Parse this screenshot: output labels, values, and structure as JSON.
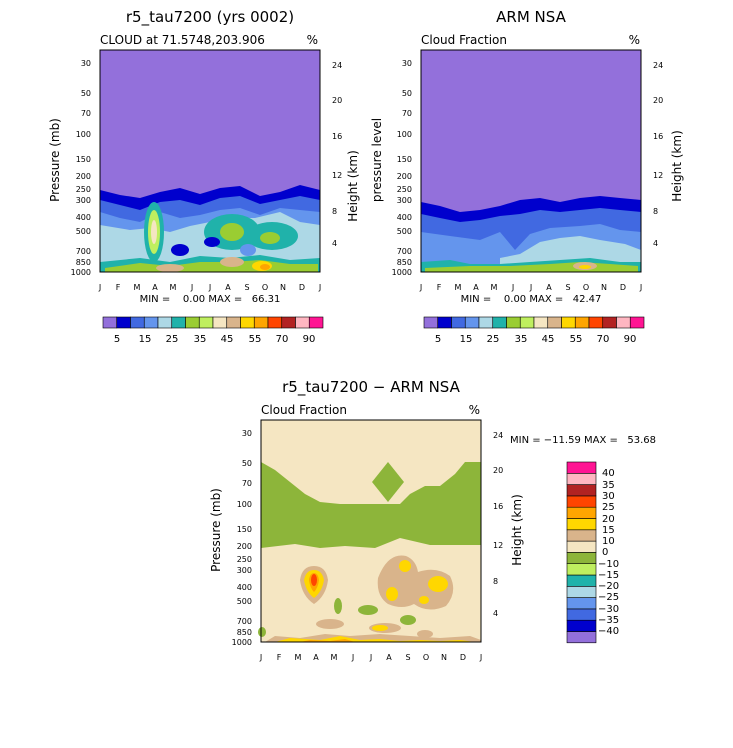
{
  "colors": {
    "cloud_scale": [
      "#9370db",
      "#0000cd",
      "#4169e1",
      "#6495ed",
      "#add8e6",
      "#20b2aa",
      "#9acd32",
      "#bfef5f",
      "#f5e6c2",
      "#d9b48b",
      "#ffd700",
      "#ffa500",
      "#ff4500",
      "#b22222",
      "#ffb6c1",
      "#ff1493"
    ],
    "diff_scale": [
      "#9370db",
      "#0000cd",
      "#4169e1",
      "#6495ed",
      "#add8e6",
      "#20b2aa",
      "#bfef5f",
      "#8db53a",
      "#f5e6c2",
      "#d9b48b",
      "#ffd700",
      "#ffa500",
      "#ff4500",
      "#b22222",
      "#ffb6c1",
      "#ff1493"
    ]
  },
  "chart_data": [
    {
      "type": "heatmap",
      "title": "r5_tau7200 (yrs 0002)",
      "subtitle": "CLOUD at 71.5748,203.906",
      "unit": "%",
      "ylabel": "Pressure (mb)",
      "ylabel_right": "Height (km)",
      "x_ticks": [
        "J",
        "F",
        "M",
        "A",
        "M",
        "J",
        "J",
        "A",
        "S",
        "O",
        "N",
        "D",
        "J"
      ],
      "y_ticks": [
        "30",
        "50",
        "70",
        "100",
        "150",
        "200",
        "250",
        "300",
        "400",
        "500",
        "700",
        "850",
        "1000"
      ],
      "y_right_ticks": [
        "24",
        "20",
        "16",
        "12",
        "8",
        "4"
      ],
      "stats": "MIN =    0.00 MAX =   66.31",
      "legend_labels": [
        "5",
        "15",
        "25",
        "35",
        "45",
        "55",
        "70",
        "90"
      ],
      "log_y": true
    },
    {
      "type": "heatmap",
      "title": "ARM NSA",
      "subtitle": "Cloud Fraction",
      "unit": "%",
      "ylabel": "pressure level",
      "ylabel_right": "Height (km)",
      "x_ticks": [
        "J",
        "F",
        "M",
        "A",
        "M",
        "J",
        "J",
        "A",
        "S",
        "O",
        "N",
        "D",
        "J"
      ],
      "y_ticks": [
        "30",
        "50",
        "70",
        "100",
        "150",
        "200",
        "250",
        "300",
        "400",
        "500",
        "700",
        "850",
        "1000"
      ],
      "y_right_ticks": [
        "24",
        "20",
        "16",
        "12",
        "8",
        "4"
      ],
      "stats": "MIN =    0.00 MAX =   42.47",
      "legend_labels": [
        "5",
        "15",
        "25",
        "35",
        "45",
        "55",
        "70",
        "90"
      ],
      "log_y": true
    },
    {
      "type": "heatmap",
      "title": "r5_tau7200 − ARM NSA",
      "subtitle": "Cloud Fraction",
      "unit": "%",
      "ylabel": "Pressure (mb)",
      "ylabel_right": "Height (km)",
      "x_ticks": [
        "J",
        "F",
        "M",
        "A",
        "M",
        "J",
        "J",
        "A",
        "S",
        "O",
        "N",
        "D",
        "J"
      ],
      "y_ticks": [
        "30",
        "50",
        "70",
        "100",
        "150",
        "200",
        "250",
        "300",
        "400",
        "500",
        "700",
        "850",
        "1000"
      ],
      "y_right_ticks": [
        "24",
        "20",
        "16",
        "12",
        "8",
        "4"
      ],
      "stats": "MIN = −11.59 MAX =   53.68",
      "legend_labels": [
        "40",
        "35",
        "30",
        "25",
        "20",
        "15",
        "10",
        "0",
        "−10",
        "−15",
        "−20",
        "−25",
        "−30",
        "−35",
        "−40"
      ],
      "log_y": true
    }
  ]
}
